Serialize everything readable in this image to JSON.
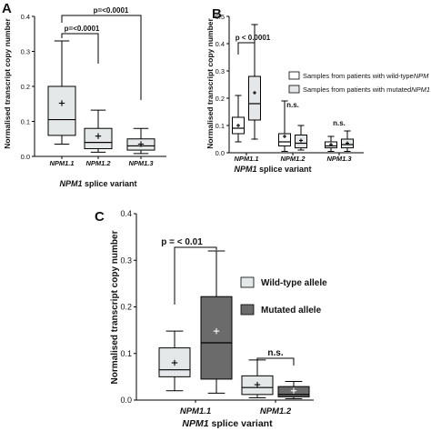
{
  "chart_data": [
    {
      "panel": "A",
      "type": "boxplot",
      "ylabel": "Normalised transcript copy number",
      "xlabel_italic": "NPM1",
      "xlabel_rest": " splice variant",
      "ylim": [
        0,
        0.4
      ],
      "yticks": [
        "0.0",
        "0.1",
        "0.2",
        "0.3",
        "0.4"
      ],
      "categories": [
        "NPM1.1",
        "NPM1.2",
        "NPM1.3"
      ],
      "fill": "#e4e8e8",
      "boxes": [
        {
          "min": 0.035,
          "q1": 0.06,
          "median": 0.105,
          "q3": 0.2,
          "max": 0.33,
          "mean": 0.152
        },
        {
          "min": 0.012,
          "q1": 0.022,
          "median": 0.04,
          "q3": 0.08,
          "max": 0.132,
          "mean": 0.058
        },
        {
          "min": 0.008,
          "q1": 0.018,
          "median": 0.03,
          "q3": 0.05,
          "max": 0.08,
          "mean": 0.035
        }
      ],
      "annotations": [
        "p=<0.0001",
        "p=<0.0001"
      ]
    },
    {
      "panel": "B",
      "type": "boxplot",
      "ylabel": "Normalised transcript copy number",
      "xlabel_italic": "NPM1",
      "xlabel_rest": " splice variant",
      "ylim": [
        0,
        0.5
      ],
      "yticks": [
        "0.0",
        "0.1",
        "0.2",
        "0.3",
        "0.4",
        "0.5"
      ],
      "categories": [
        "NPM1.1",
        "NPM1.2",
        "NPM1.3"
      ],
      "series": [
        {
          "name": "Samples from patients with wild-type",
          "name_italic": "NPM",
          "fill": "#ffffff",
          "boxes": [
            {
              "min": 0.04,
              "q1": 0.07,
              "median": 0.09,
              "q3": 0.13,
              "max": 0.21,
              "mean": 0.1
            },
            {
              "min": 0.005,
              "q1": 0.025,
              "median": 0.04,
              "q3": 0.07,
              "max": 0.19,
              "mean": 0.06
            },
            {
              "min": 0.005,
              "q1": 0.018,
              "median": 0.025,
              "q3": 0.04,
              "max": 0.06,
              "mean": 0.03
            }
          ]
        },
        {
          "name": "Samples from patients with mutated",
          "name_italic": "NPM1",
          "fill": "#e4e8e8",
          "boxes": [
            {
              "min": 0.05,
              "q1": 0.12,
              "median": 0.18,
              "q3": 0.28,
              "max": 0.47,
              "mean": 0.22
            },
            {
              "min": 0.01,
              "q1": 0.018,
              "median": 0.035,
              "q3": 0.065,
              "max": 0.1,
              "mean": 0.045
            },
            {
              "min": 0.005,
              "q1": 0.018,
              "median": 0.03,
              "q3": 0.05,
              "max": 0.08,
              "mean": 0.035
            }
          ]
        }
      ],
      "annotations": [
        "p < 0.0001",
        "n.s.",
        "n.s."
      ]
    },
    {
      "panel": "C",
      "type": "boxplot",
      "ylabel": "Normalised transcript copy number",
      "xlabel_italic": "NPM1",
      "xlabel_rest": " splice variant",
      "ylim": [
        0,
        0.4
      ],
      "yticks": [
        "0.0",
        "0.1",
        "0.2",
        "0.3",
        "0.4"
      ],
      "categories": [
        "NPM1.1",
        "NPM1.2"
      ],
      "series": [
        {
          "name": "Wild-type allele",
          "fill": "#e4e8e8",
          "boxes": [
            {
              "min": 0.02,
              "q1": 0.05,
              "median": 0.065,
              "q3": 0.112,
              "max": 0.148,
              "mean": 0.08
            },
            {
              "min": 0.005,
              "q1": 0.012,
              "median": 0.027,
              "q3": 0.052,
              "max": 0.086,
              "mean": 0.033
            }
          ]
        },
        {
          "name": "Mutated allele",
          "fill": "#6b6b6b",
          "boxes": [
            {
              "min": 0.015,
              "q1": 0.045,
              "median": 0.123,
              "q3": 0.222,
              "max": 0.32,
              "mean": 0.148
            },
            {
              "min": 0.003,
              "q1": 0.007,
              "median": 0.012,
              "q3": 0.029,
              "max": 0.04,
              "mean": 0.02
            }
          ]
        }
      ],
      "annotations": [
        "p = < 0.01",
        "n.s."
      ]
    }
  ]
}
